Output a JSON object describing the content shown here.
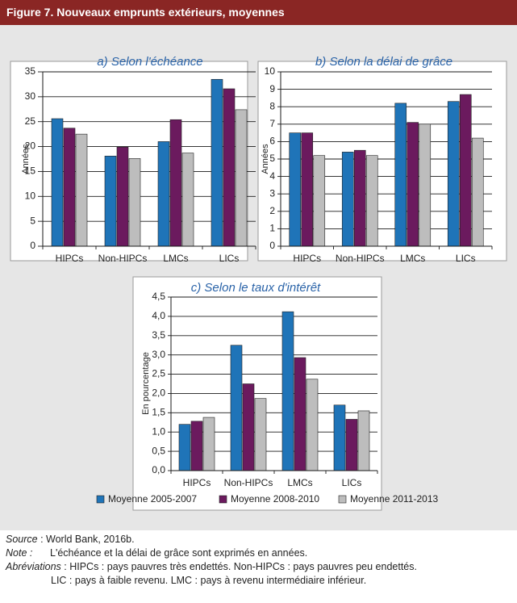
{
  "header": {
    "title": "Figure 7. Nouveaux emprunts extérieurs, moyennes"
  },
  "chart_data": [
    {
      "type": "bar",
      "title": "a) Selon l'échéance",
      "ylabel": "Années",
      "xlabel": "",
      "categories": [
        "HIPCs",
        "Non-HIPCs",
        "LMCs",
        "LICs"
      ],
      "ylim": [
        0,
        35
      ],
      "yticks": [
        "0",
        "5",
        "10",
        "15",
        "20",
        "25",
        "30",
        "35"
      ],
      "series": [
        {
          "name": "Moyenne 2005-2007",
          "values": [
            25.6,
            18.1,
            21.0,
            33.5
          ]
        },
        {
          "name": "Moyenne 2008-2010",
          "values": [
            23.7,
            19.9,
            25.4,
            31.6
          ]
        },
        {
          "name": "Moyenne 2011-2013",
          "values": [
            22.5,
            17.6,
            18.7,
            27.4
          ]
        }
      ]
    },
    {
      "type": "bar",
      "title": "b) Selon la délai de grâce",
      "ylabel": "Années",
      "xlabel": "",
      "categories": [
        "HIPCs",
        "Non-HIPCs",
        "LMCs",
        "LICs"
      ],
      "ylim": [
        0,
        10
      ],
      "yticks": [
        "0",
        "1",
        "2",
        "3",
        "4",
        "5",
        "6",
        "7",
        "8",
        "9",
        "10"
      ],
      "series": [
        {
          "name": "Moyenne 2005-2007",
          "values": [
            6.5,
            5.4,
            8.2,
            8.3
          ]
        },
        {
          "name": "Moyenne 2008-2010",
          "values": [
            6.5,
            5.5,
            7.1,
            8.7
          ]
        },
        {
          "name": "Moyenne 2011-2013",
          "values": [
            5.2,
            5.2,
            7.0,
            6.2
          ]
        }
      ]
    },
    {
      "type": "bar",
      "title": "c) Selon le taux d'intérêt",
      "ylabel": "En pourcentage",
      "xlabel": "",
      "categories": [
        "HIPCs",
        "Non-HIPCs",
        "LMCs",
        "LICs"
      ],
      "ylim": [
        0,
        4.5
      ],
      "yticks": [
        "0,0",
        "0,5",
        "1,0",
        "1,5",
        "2,0",
        "2,5",
        "3,0",
        "3,5",
        "4,0",
        "4,5"
      ],
      "series": [
        {
          "name": "Moyenne 2005-2007",
          "values": [
            1.2,
            3.25,
            4.12,
            1.7
          ]
        },
        {
          "name": "Moyenne 2008-2010",
          "values": [
            1.28,
            2.25,
            2.93,
            1.33
          ]
        },
        {
          "name": "Moyenne 2011-2013",
          "values": [
            1.38,
            1.87,
            2.37,
            1.55
          ]
        }
      ]
    }
  ],
  "legend": [
    {
      "label": "Moyenne 2005-2007",
      "color": "#1f74b8"
    },
    {
      "label": "Moyenne 2008-2010",
      "color": "#6b1a5e"
    },
    {
      "label": "Moyenne 2011-2013",
      "color": "#bdbdbd"
    }
  ],
  "footer": {
    "source_label": "Source",
    "source_text": " : World Bank, 2016b.",
    "note_label": "Note :",
    "note_text": "L'échéance et la délai de grâce sont exprimés en années.",
    "abbr_label": "Abréviations",
    "abbr_text": " : HIPCs : pays pauvres très endettés. Non-HIPCs : pays pauvres peu endettés.",
    "abbr_text2": "LIC : pays à faible revenu. LMC : pays à revenu intermédiaire inférieur."
  }
}
